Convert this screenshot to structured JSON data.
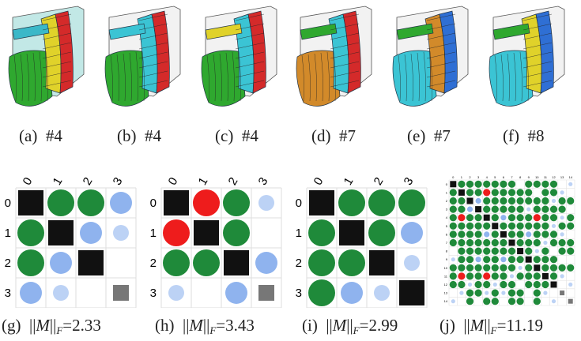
{
  "renders": [
    {
      "id": "a",
      "label": "(a)",
      "model": "#4",
      "shell": "#8fd6d2",
      "regions": [
        "#2fa82f",
        "#e0d22a",
        "#d42a2a",
        "#3bb8c8"
      ]
    },
    {
      "id": "b",
      "label": "(b)",
      "model": "#4",
      "shell": "#e8e8e8",
      "regions": [
        "#2fa82f",
        "#3bc4d4",
        "#d42a2a",
        "#3bc4d4"
      ]
    },
    {
      "id": "c",
      "label": "(c)",
      "model": "#4",
      "shell": "#e8e8e8",
      "regions": [
        "#2fa82f",
        "#3bc4d4",
        "#d42a2a",
        "#e0d22a"
      ]
    },
    {
      "id": "d",
      "label": "(d)",
      "model": "#7",
      "shell": "#e8e8e8",
      "regions": [
        "#d28a2a",
        "#3bc4d4",
        "#d42a2a",
        "#2fa82f"
      ]
    },
    {
      "id": "e",
      "label": "(e)",
      "model": "#7",
      "shell": "#e8e8e8",
      "regions": [
        "#3bc4d4",
        "#d28a2a",
        "#2f6fd4",
        "#2fa82f"
      ]
    },
    {
      "id": "f",
      "label": "(f)",
      "model": "#8",
      "shell": "#e8e8e8",
      "regions": [
        "#3bc4d4",
        "#e0d22a",
        "#2f6fd4",
        "#2fa82f"
      ]
    }
  ],
  "matrix_captions": {
    "g": {
      "label": "(g)",
      "norm_prefix": "||",
      "norm_var": "M",
      "norm_mid": "||",
      "norm_sub": "F",
      "value": "=2.33"
    },
    "h": {
      "label": "(h)",
      "norm_prefix": "||",
      "norm_var": "M",
      "norm_mid": "||",
      "norm_sub": "F",
      "value": "=3.43"
    },
    "i": {
      "label": "(i)",
      "norm_prefix": "||",
      "norm_var": "M",
      "norm_mid": "||",
      "norm_sub": "F",
      "value": "=2.99"
    },
    "j": {
      "label": "(j)",
      "norm_prefix": "||",
      "norm_var": "M",
      "norm_mid": "||",
      "norm_sub": "F",
      "value": "=11.19"
    }
  },
  "matrices": {
    "g": {
      "headers": [
        "0",
        "1",
        "2",
        "3"
      ],
      "cells": [
        [
          "D",
          "G",
          "G",
          "B"
        ],
        [
          "G",
          "D",
          "B",
          "b"
        ],
        [
          "G",
          "B",
          "D",
          ""
        ],
        [
          "B",
          "b",
          "",
          "d"
        ]
      ]
    },
    "h": {
      "headers": [
        "0",
        "1",
        "2",
        "3"
      ],
      "cells": [
        [
          "D",
          "R",
          "G",
          "b"
        ],
        [
          "R",
          "D",
          "G",
          ""
        ],
        [
          "G",
          "G",
          "D",
          "B"
        ],
        [
          "b",
          "",
          "B",
          "d"
        ]
      ]
    },
    "i": {
      "headers": [
        "0",
        "1",
        "2",
        "3"
      ],
      "cells": [
        [
          "D",
          "G",
          "G",
          "G"
        ],
        [
          "G",
          "D",
          "G",
          "B"
        ],
        [
          "G",
          "G",
          "D",
          "b"
        ],
        [
          "G",
          "B",
          "b",
          "D"
        ]
      ]
    }
  },
  "large_matrix": {
    "headers": [
      "0",
      "1",
      "2",
      "3",
      "4",
      "5",
      "6",
      "7",
      "8",
      "9",
      "10",
      "11",
      "12",
      "13",
      "14"
    ],
    "cells": [
      [
        "D",
        "G",
        "G",
        "G",
        "G",
        "G",
        "G",
        "G",
        "",
        "G",
        "G",
        "G",
        "G",
        "",
        "b"
      ],
      [
        "G",
        "D",
        "G",
        "G",
        "R",
        "G",
        "G",
        "G",
        "G",
        "G",
        "",
        "G",
        "G",
        "b",
        ""
      ],
      [
        "G",
        "G",
        "D",
        "B",
        "G",
        "G",
        "G",
        "G",
        "G",
        "G",
        "G",
        "G",
        "b",
        "G",
        "G"
      ],
      [
        "G",
        "G",
        "B",
        "D",
        "G",
        "G",
        "G",
        "G",
        "G",
        "b",
        "G",
        "G",
        "G",
        "G",
        ""
      ],
      [
        "G",
        "R",
        "G",
        "G",
        "D",
        "G",
        "B",
        "G",
        "G",
        "G",
        "R",
        "G",
        "G",
        "b",
        "G"
      ],
      [
        "G",
        "G",
        "G",
        "G",
        "G",
        "D",
        "G",
        "G",
        "G",
        "G",
        "G",
        "G",
        "b",
        "G",
        "G"
      ],
      [
        "G",
        "G",
        "G",
        "G",
        "B",
        "G",
        "D",
        "G",
        "G",
        "B",
        "G",
        "G",
        "G",
        "b",
        ""
      ],
      [
        "G",
        "G",
        "G",
        "G",
        "G",
        "G",
        "G",
        "D",
        "G",
        "G",
        "G",
        "b",
        "G",
        "G",
        "G"
      ],
      [
        "",
        "G",
        "G",
        "G",
        "G",
        "G",
        "G",
        "G",
        "D",
        "G",
        "b",
        "G",
        "",
        "G",
        "G"
      ],
      [
        "b",
        "G",
        "G",
        "B",
        "G",
        "G",
        "B",
        "G",
        "G",
        "D",
        "G",
        "G",
        "G",
        "",
        ""
      ],
      [
        "G",
        "G",
        "G",
        "G",
        "G",
        "G",
        "G",
        "G",
        "b",
        "G",
        "D",
        "G",
        "G",
        "G",
        "G"
      ],
      [
        "G",
        "R",
        "G",
        "G",
        "R",
        "G",
        "G",
        "b",
        "G",
        "G",
        "G",
        "D",
        "G",
        "b",
        ""
      ],
      [
        "G",
        "G",
        "b",
        "G",
        "G",
        "b",
        "G",
        "G",
        "",
        "G",
        "G",
        "G",
        "D",
        "",
        "b"
      ],
      [
        "",
        "b",
        "G",
        "G",
        "b",
        "G",
        "b",
        "G",
        "G",
        "",
        "G",
        "b",
        "",
        "d",
        ""
      ],
      [
        "b",
        "",
        "G",
        "",
        "G",
        "G",
        "",
        "G",
        "G",
        "",
        "G",
        "",
        "b",
        "",
        "d"
      ]
    ]
  },
  "legend_colors": {
    "strong": "#1f8a3a",
    "negative": "#ee1c1c",
    "weak": "#8fb3ee",
    "weaker": "#bcd2f5",
    "diag": "#111111",
    "diag_light": "#777777"
  }
}
